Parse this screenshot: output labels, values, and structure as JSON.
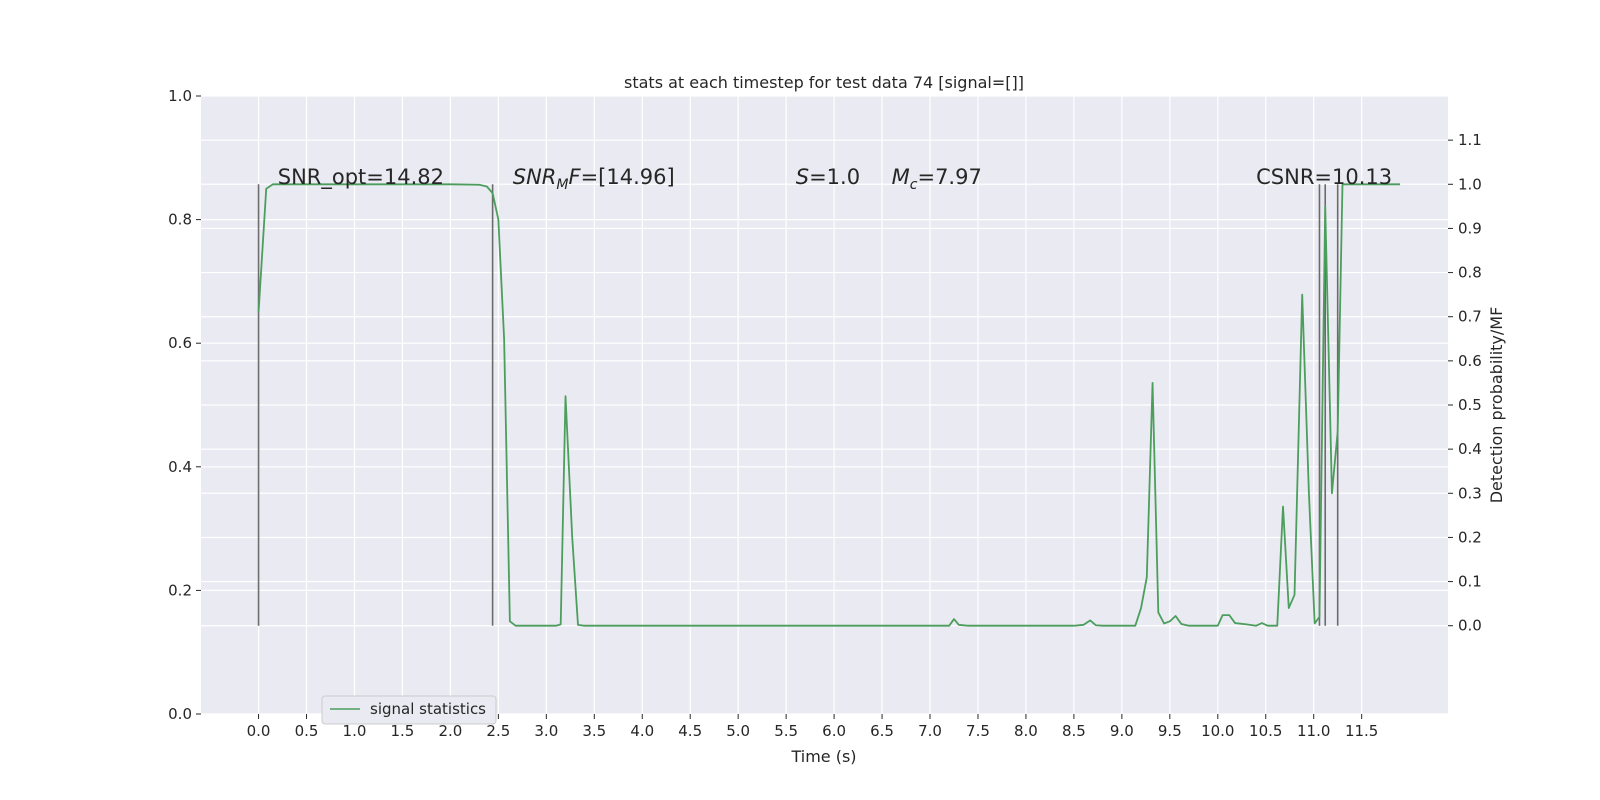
{
  "chart_data": {
    "type": "line",
    "title": "stats at each timestep for test data 74 [signal=[]]",
    "xlabel": "Time (s)",
    "ylabel_right": "Detection probability/MF",
    "xlim": [
      -0.6,
      12.4
    ],
    "ylim_left": [
      0.0,
      1.0
    ],
    "ylim_right": [
      -0.2,
      1.2
    ],
    "x_ticks": [
      "0.0",
      "0.5",
      "1.0",
      "1.5",
      "2.0",
      "2.5",
      "3.0",
      "3.5",
      "4.0",
      "4.5",
      "5.0",
      "5.5",
      "6.0",
      "6.5",
      "7.0",
      "7.5",
      "8.0",
      "8.5",
      "9.0",
      "9.5",
      "10.0",
      "10.5",
      "11.0",
      "11.5"
    ],
    "y_left_ticks": [
      "0.0",
      "0.2",
      "0.4",
      "0.6",
      "0.8",
      "1.0"
    ],
    "y_right_ticks": [
      "0.0",
      "0.1",
      "0.2",
      "0.3",
      "0.4",
      "0.5",
      "0.6",
      "0.7",
      "0.8",
      "0.9",
      "1.0",
      "1.1"
    ],
    "grid": true,
    "legend_position": "lower-left",
    "annotations": [
      {
        "text": "SNR_opt=14.82",
        "x": 0.2
      },
      {
        "text": "SNR_MF=[14.96]",
        "x": 2.65,
        "math": "snrmf"
      },
      {
        "text": "S=1.0",
        "x": 5.6,
        "math": "s"
      },
      {
        "text": "M_c=7.97",
        "x": 6.6,
        "math": "mc"
      },
      {
        "text": "CSNR=10.13",
        "x": 10.4
      }
    ],
    "vertical_lines_x": [
      0.0,
      2.44,
      11.06,
      11.12,
      11.25
    ],
    "series": [
      {
        "name": "signal statistics",
        "color": "#4c9e5c",
        "points": [
          [
            0.0,
            0.71
          ],
          [
            0.08,
            0.99
          ],
          [
            0.15,
            1.0
          ],
          [
            0.3,
            1.0
          ],
          [
            0.6,
            1.0
          ],
          [
            1.0,
            1.0
          ],
          [
            1.5,
            1.0
          ],
          [
            2.0,
            1.0
          ],
          [
            2.3,
            0.999
          ],
          [
            2.38,
            0.995
          ],
          [
            2.44,
            0.98
          ],
          [
            2.5,
            0.92
          ],
          [
            2.56,
            0.65
          ],
          [
            2.62,
            0.01
          ],
          [
            2.68,
            0.0
          ],
          [
            2.8,
            0.0
          ],
          [
            3.0,
            0.0
          ],
          [
            3.1,
            0.0
          ],
          [
            3.15,
            0.003
          ],
          [
            3.2,
            0.52
          ],
          [
            3.27,
            0.2
          ],
          [
            3.33,
            0.002
          ],
          [
            3.4,
            0.0
          ],
          [
            3.6,
            0.0
          ],
          [
            4.0,
            0.0
          ],
          [
            5.0,
            0.0
          ],
          [
            6.0,
            0.0
          ],
          [
            7.0,
            0.0
          ],
          [
            7.2,
            0.0
          ],
          [
            7.25,
            0.015
          ],
          [
            7.3,
            0.002
          ],
          [
            7.4,
            0.0
          ],
          [
            8.0,
            0.0
          ],
          [
            8.5,
            0.0
          ],
          [
            8.6,
            0.002
          ],
          [
            8.67,
            0.012
          ],
          [
            8.73,
            0.001
          ],
          [
            8.8,
            0.0
          ],
          [
            9.0,
            0.0
          ],
          [
            9.14,
            0.0
          ],
          [
            9.2,
            0.04
          ],
          [
            9.26,
            0.11
          ],
          [
            9.32,
            0.55
          ],
          [
            9.38,
            0.03
          ],
          [
            9.44,
            0.005
          ],
          [
            9.5,
            0.01
          ],
          [
            9.56,
            0.022
          ],
          [
            9.62,
            0.004
          ],
          [
            9.7,
            0.0
          ],
          [
            9.9,
            0.0
          ],
          [
            10.0,
            0.0
          ],
          [
            10.05,
            0.024
          ],
          [
            10.12,
            0.024
          ],
          [
            10.18,
            0.006
          ],
          [
            10.3,
            0.003
          ],
          [
            10.4,
            0.0
          ],
          [
            10.46,
            0.006
          ],
          [
            10.52,
            0.0
          ],
          [
            10.62,
            0.0
          ],
          [
            10.68,
            0.27
          ],
          [
            10.74,
            0.04
          ],
          [
            10.8,
            0.07
          ],
          [
            10.88,
            0.75
          ],
          [
            10.95,
            0.3
          ],
          [
            11.01,
            0.005
          ],
          [
            11.06,
            0.02
          ],
          [
            11.12,
            0.95
          ],
          [
            11.19,
            0.3
          ],
          [
            11.25,
            0.44
          ],
          [
            11.3,
            1.0
          ],
          [
            11.4,
            1.0
          ],
          [
            11.6,
            1.0
          ],
          [
            11.9,
            1.0
          ]
        ]
      }
    ]
  }
}
